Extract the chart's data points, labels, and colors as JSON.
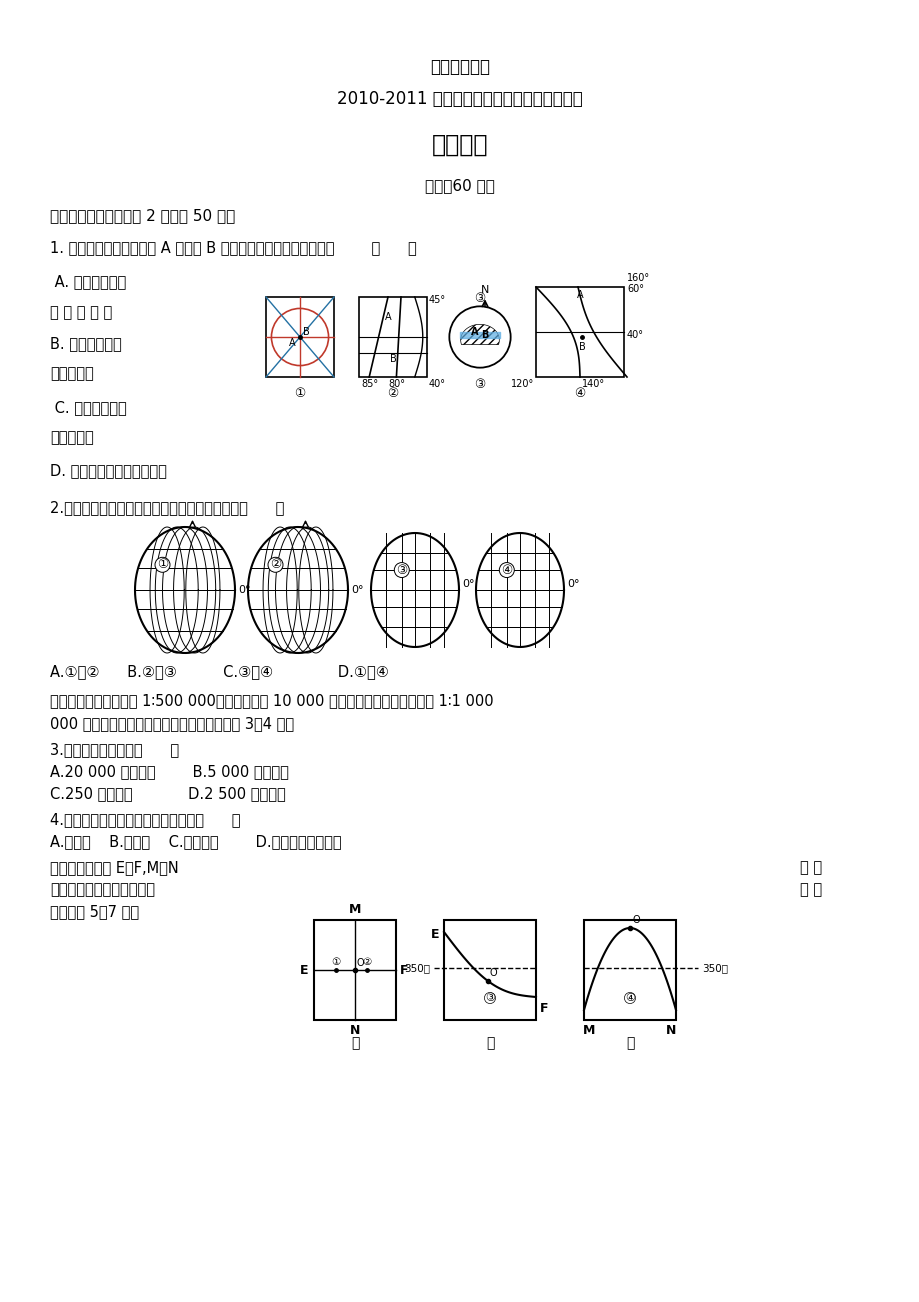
{
  "bg_color": "#ffffff",
  "title1": "山西大学附中",
  "title2": "2010-2011 学年高二年级第一学期第二次月考",
  "title3": "地理试题",
  "time_line": "时间：60 分钟",
  "section1": "一、单项选择题（每题 2 分，共 50 分）",
  "q1": "1. 下图所示四幅图中关于 A 相对于 B 的方向判断排列顺序正确的是        （      ）",
  "q1_A": " A. 西北、东北、",
  "q1_A2": "西 南 、 西 北",
  "q1_B": "B. 西南、东北、",
  "q1_B2": "西北、西北",
  "q1_C": " C. 东北、西北、",
  "q1_C2": "西北、西南",
  "q1_D": "D. 西北、西北、西南、东北",
  "q2": "2.在下列的四幅图中，经纬度位置相同的两点是（      ）",
  "q2_answers": "A.①和②      B.②和③          C.③和④              D.①和④",
  "para1_line1": "　　一幅地图比例尺为 1∶500 000，图幅面积为 10 000 平方厘米。根据需要，现用 1∶1 000",
  "para1_line2": "000 的比例尺绘制同一地区的地图，据此回答 3～4 题。",
  "q3": "3.新图图幅的面积为（      ）",
  "q3_A": "A.20 000 平方厘米",
  "q3_B": "B.5 000 平方厘米",
  "q3_C": "C.250 平方厘米",
  "q3_D": "D.2 500 平方厘米",
  "q4": "4.新图与原图相比，表示的地理事物（      ）",
  "q4_A": "A.更详细",
  "q4_B": "B.较粗略",
  "q4_C": "C.没有变化",
  "q4_D": "D.相对位置发生变化"
}
